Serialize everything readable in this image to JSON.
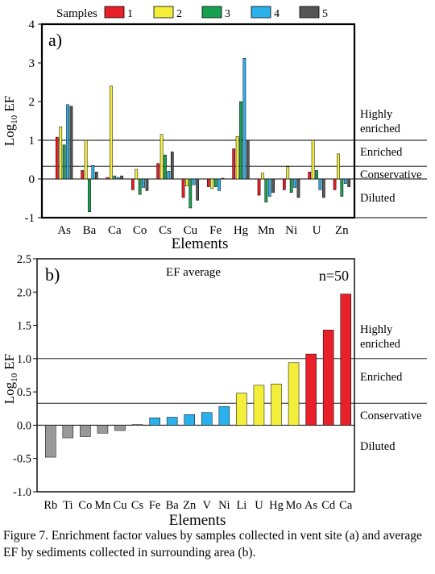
{
  "caption": "Figure 7. Enrichment factor values by samples collected in vent site (a) and average EF by sediments collected in surrounding area (b).",
  "chart_data": [
    {
      "type": "bar",
      "panel_label": "a)",
      "legend_title": "Samples",
      "ylabel": "Log10 EF",
      "ylabel_main": "Log",
      "ylabel_sub": "10",
      "ylabel_tail": " EF",
      "xlabel": "Elements",
      "ylim": [
        -1,
        4
      ],
      "yticks": [
        -1,
        0,
        1,
        2,
        3,
        4
      ],
      "ytick_labels": [
        "-1",
        "0",
        "1",
        "2",
        "3",
        "4"
      ],
      "legend_placement": "top",
      "categories": [
        "As",
        "Ba",
        "Ca",
        "Co",
        "Cs",
        "Cu",
        "Fe",
        "Hg",
        "Mn",
        "Ni",
        "U",
        "Zn"
      ],
      "series": [
        {
          "name": "1",
          "color": "#e8202a",
          "values": [
            1.08,
            0.22,
            0.04,
            -0.28,
            0.4,
            -0.48,
            -0.2,
            0.78,
            -0.42,
            -0.28,
            0.18,
            -0.28
          ]
        },
        {
          "name": "2",
          "color": "#f2ee3a",
          "values": [
            1.35,
            1.0,
            2.4,
            0.25,
            1.15,
            -0.18,
            -0.25,
            1.1,
            0.15,
            0.32,
            1.0,
            0.65
          ]
        },
        {
          "name": "3",
          "color": "#17a050",
          "values": [
            0.88,
            -0.85,
            0.08,
            -0.4,
            0.62,
            -0.75,
            -0.2,
            2.0,
            -0.6,
            -0.35,
            0.22,
            -0.45
          ]
        },
        {
          "name": "4",
          "color": "#2ab0ea",
          "values": [
            1.92,
            0.35,
            0.04,
            -0.22,
            0.2,
            -0.15,
            -0.3,
            3.12,
            -0.45,
            -0.22,
            -0.28,
            -0.12
          ]
        },
        {
          "name": "5",
          "color": "#555555",
          "values": [
            1.88,
            0.18,
            0.08,
            -0.3,
            0.7,
            -0.55,
            0.02,
            1.0,
            -0.35,
            -0.48,
            -0.48,
            -0.2
          ]
        }
      ],
      "reference_lines": [
        {
          "y": 1.0,
          "label": "Highly enriched"
        },
        {
          "y": 0.33,
          "label": "Enriched"
        },
        {
          "y": 0.0,
          "label": "Conservative"
        },
        {
          "y": -1.0,
          "label": "Diluted"
        }
      ],
      "zone_labels": [
        "Highly",
        "enriched",
        "Enriched",
        "Conservative",
        "Diluted"
      ]
    },
    {
      "type": "bar",
      "panel_label": "b)",
      "title": "EF average",
      "annotation": "n=50",
      "ylabel": "Log10 EF",
      "ylabel_main": "Log",
      "ylabel_sub": "10",
      "ylabel_tail": " EF",
      "xlabel": "Elements",
      "ylim": [
        -1.0,
        2.5
      ],
      "yticks": [
        -1.0,
        -0.5,
        0.0,
        0.5,
        1.0,
        1.5,
        2.0,
        2.5
      ],
      "ytick_labels": [
        "-1.0",
        "-0.5",
        "0.0",
        "0.5",
        "1.0",
        "1.5",
        "2.0",
        "2.5"
      ],
      "categories": [
        "Rb",
        "Ti",
        "Co",
        "Mn",
        "Cu",
        "Cs",
        "Fe",
        "Ba",
        "Zn",
        "V",
        "Ni",
        "Li",
        "U",
        "Hg",
        "Mo",
        "As",
        "Cd",
        "Ca"
      ],
      "values": [
        -0.48,
        -0.19,
        -0.17,
        -0.12,
        -0.08,
        0.01,
        0.11,
        0.12,
        0.16,
        0.19,
        0.28,
        0.48,
        0.6,
        0.62,
        0.94,
        1.07,
        1.43,
        1.97
      ],
      "bar_colors": [
        "#999999",
        "#999999",
        "#999999",
        "#999999",
        "#999999",
        "#999999",
        "#2ab0ea",
        "#2ab0ea",
        "#2ab0ea",
        "#2ab0ea",
        "#2ab0ea",
        "#f2ee3a",
        "#f2ee3a",
        "#f2ee3a",
        "#f2ee3a",
        "#e8202a",
        "#e8202a",
        "#e8202a"
      ],
      "reference_lines": [
        1.0,
        0.33
      ],
      "zone_labels": [
        "Highly",
        "enriched",
        "Enriched",
        "Conservative",
        "Diluted"
      ]
    }
  ]
}
